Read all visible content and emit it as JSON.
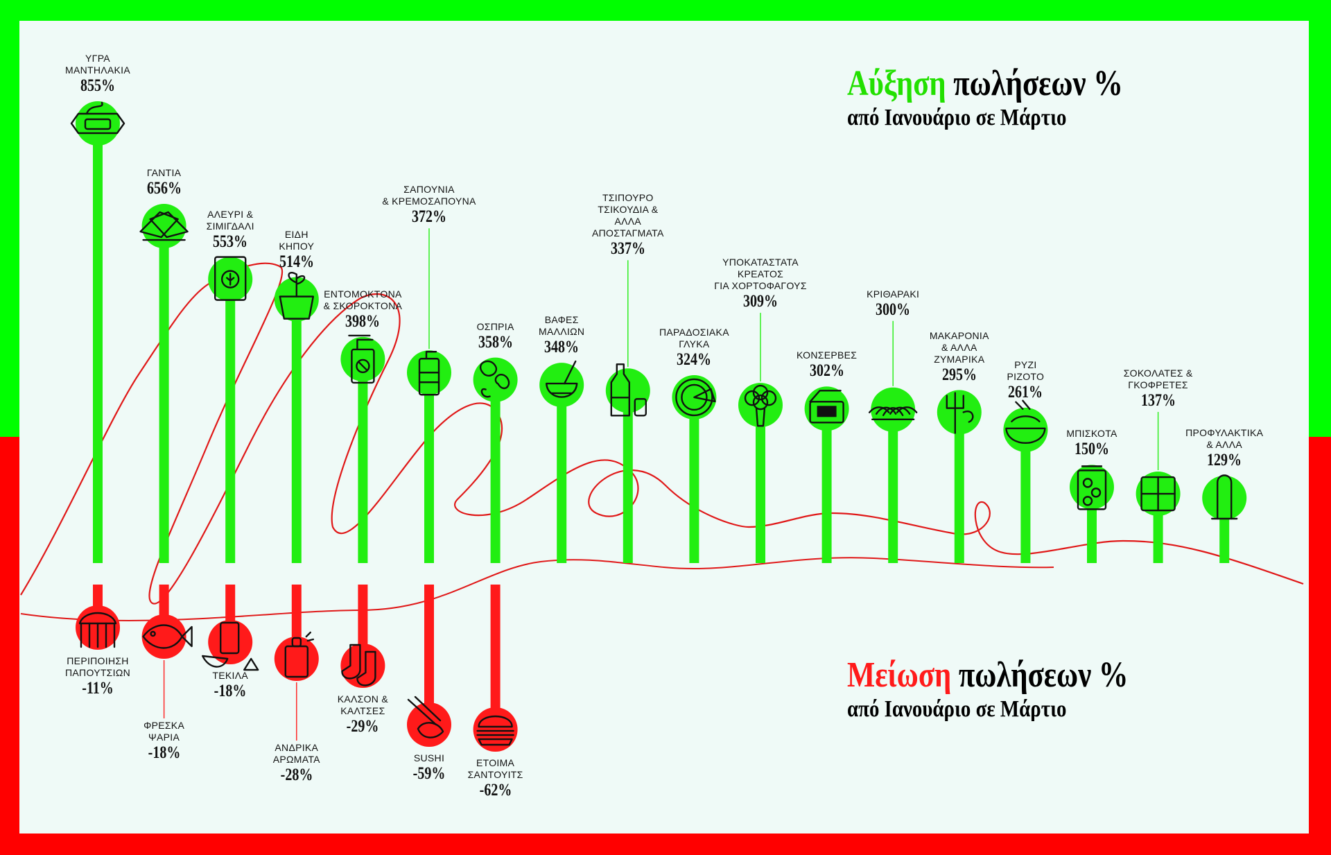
{
  "titles": {
    "increase_word": "Αύξηση",
    "increase_rest": " πωλήσεων %",
    "increase_sub": "από Ιανουάριο σε Μάρτιο",
    "decrease_word": "Μείωση",
    "decrease_rest": " πωλήσεων %",
    "decrease_sub": "από Ιανουάριο σε Μάρτιο"
  },
  "colors": {
    "increase": "#22ee11",
    "decrease": "#ff1a1a",
    "ink": "#111111"
  },
  "chart_data": {
    "type": "bar",
    "title": "Αύξηση πωλήσεων % / Μείωση πωλήσεων %",
    "subtitle": "από Ιανουάριο σε Μάρτιο",
    "increases": [
      {
        "name": "ΥΓΡΑ ΜΑΝΤΗΛΑΚΙΑ",
        "value": 855,
        "label": "855%",
        "icon": "wet-wipes-icon"
      },
      {
        "name": "ΓΑΝΤΙΑ",
        "value": 656,
        "label": "656%",
        "icon": "gloves-icon"
      },
      {
        "name": "ΑΛΕΥΡΙ & ΣΙΜΙΓΔΑΛΙ",
        "value": 553,
        "label": "553%",
        "icon": "flour-bag-icon"
      },
      {
        "name": "ΕΙΔΗ ΚΗΠΟΥ",
        "value": 514,
        "label": "514%",
        "icon": "plant-pot-icon"
      },
      {
        "name": "ΕΝΤΟΜΟΚΤΟΝΑ & ΣΚΟΡΟΚΤΟΝΑ",
        "value": 398,
        "label": "398%",
        "icon": "spray-bottle-icon"
      },
      {
        "name": "ΣΑΠΟΥΝΙΑ & ΚΡΕΜΟΣΑΠΟΥΝΑ",
        "value": 372,
        "label": "372%",
        "icon": "soap-pump-icon"
      },
      {
        "name": "ΟΣΠΡΙΑ",
        "value": 358,
        "label": "358%",
        "icon": "legumes-icon"
      },
      {
        "name": "ΒΑΦΕΣ ΜΑΛΛΙΩΝ",
        "value": 348,
        "label": "348%",
        "icon": "hair-dye-icon"
      },
      {
        "name": "ΤΣΙΠΟΥΡΟ ΤΣΙΚΟΥΔΙΑ & ΑΛΛΑ ΑΠΟΣΤΑΓΜΑΤΑ",
        "value": 337,
        "label": "337%",
        "icon": "bottle-glass-icon"
      },
      {
        "name": "ΠΑΡΑΔΟΣΙΑΚΑ ΓΛΥΚΑ",
        "value": 324,
        "label": "324%",
        "icon": "pie-icon"
      },
      {
        "name": "ΥΠΟΚΑΤΑΣΤΑΤΑ ΚΡΕΑΤΟΣ ΓΙΑ ΧΟΡΤΟΦΑΓΟΥΣ",
        "value": 309,
        "label": "309%",
        "icon": "broccoli-icon"
      },
      {
        "name": "ΚΟΝΣΕΡΒΕΣ",
        "value": 302,
        "label": "302%",
        "icon": "tin-can-icon"
      },
      {
        "name": "ΚΡΙΘΑΡΑΚΙ",
        "value": 300,
        "label": "300%",
        "icon": "orzo-icon"
      },
      {
        "name": "ΜΑΚΑΡΟΝΙΑ & ΑΛΛΑ ΖΥΜΑΡΙΚΑ",
        "value": 295,
        "label": "295%",
        "icon": "fork-pasta-icon"
      },
      {
        "name": "ΡΥΖΙ ΡΙΖΟΤΟ",
        "value": 261,
        "label": "261%",
        "icon": "rice-bowl-icon"
      },
      {
        "name": "ΜΠΙΣΚΟΤΑ",
        "value": 150,
        "label": "150%",
        "icon": "cookie-jar-icon"
      },
      {
        "name": "ΣΟΚΟΛΑΤΕΣ & ΓΚΟΦΡΕΤΕΣ",
        "value": 137,
        "label": "137%",
        "icon": "chocolate-icon"
      },
      {
        "name": "ΠΡΟΦΥΛΑΚΤΙΚΑ & ΑΛΛΑ",
        "value": 129,
        "label": "129%",
        "icon": "condom-icon"
      }
    ],
    "decreases": [
      {
        "name": "ΠΕΡΙΠΟΙΗΣΗ ΠΑΠΟΥΤΣΙΩΝ",
        "value": -11,
        "label": "-11%",
        "icon": "shoe-brush-icon"
      },
      {
        "name": "ΦΡΕΣΚΑ ΨΑΡΙΑ",
        "value": -18,
        "label": "-18%",
        "icon": "fish-icon"
      },
      {
        "name": "ΤΕΚΙΛΑ",
        "value": -18,
        "label": "-18%",
        "icon": "tequila-icon"
      },
      {
        "name": "ΑΝΔΡΙΚΑ ΑΡΩΜΑΤΑ",
        "value": -28,
        "label": "-28%",
        "icon": "perfume-icon"
      },
      {
        "name": "ΚΑΛΣΟΝ & ΚΑΛΤΣΕΣ",
        "value": -29,
        "label": "-29%",
        "icon": "socks-icon"
      },
      {
        "name": "SUSHI",
        "value": -59,
        "label": "-59%",
        "icon": "sushi-icon"
      },
      {
        "name": "ΕΤΟΙΜΑ ΣΑΝΤΟΥΙΤΣ",
        "value": -62,
        "label": "-62%",
        "icon": "sandwich-icon"
      }
    ]
  }
}
